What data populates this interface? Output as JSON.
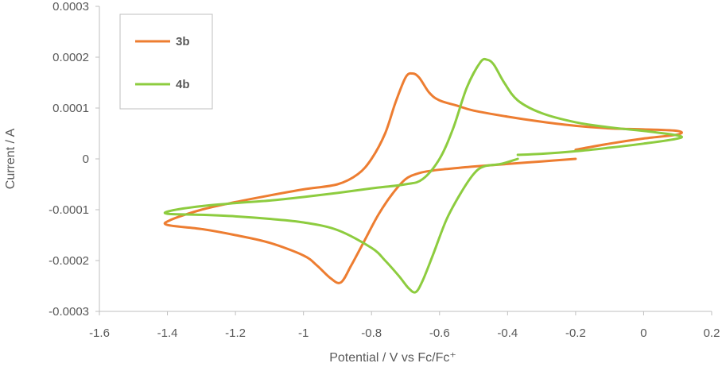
{
  "chart_data": {
    "type": "line",
    "title": "",
    "xlabel": "Potential / V vs  Fc/Fc⁺",
    "ylabel": "Current / A",
    "xlim": [
      -1.6,
      0.2
    ],
    "ylim": [
      -0.0003,
      0.0003
    ],
    "x_ticks": [
      -1.6,
      -1.4,
      -1.2,
      -1,
      -0.8,
      -0.6,
      -0.4,
      -0.2,
      0,
      0.2
    ],
    "x_tick_labels": [
      "-1.6",
      "-1.4",
      "-1.2",
      "-1",
      "-0.8",
      "-0.6",
      "-0.4",
      "-0.2",
      "0",
      "0.2"
    ],
    "y_ticks": [
      -0.0003,
      -0.0002,
      -0.0001,
      0,
      0.0001,
      0.0002,
      0.0003
    ],
    "y_tick_labels": [
      "-0.0003",
      "-0.0002",
      "-0.0001",
      "0",
      "0.0001",
      "0.0002",
      "0.0003"
    ],
    "grid": false,
    "legend_position": "top-left",
    "series": [
      {
        "name": "3b",
        "color": "#ED7D31",
        "points": [
          [
            -0.2,
            0.0
          ],
          [
            -0.3,
            -5e-06
          ],
          [
            -0.4,
            -1e-05
          ],
          [
            -0.5,
            -1.5e-05
          ],
          [
            -0.58,
            -2e-05
          ],
          [
            -0.62,
            -2.3e-05
          ],
          [
            -0.66,
            -2.8e-05
          ],
          [
            -0.7,
            -4e-05
          ],
          [
            -0.74,
            -7e-05
          ],
          [
            -0.78,
            -0.00011
          ],
          [
            -0.82,
            -0.00016
          ],
          [
            -0.86,
            -0.00021
          ],
          [
            -0.89,
            -0.000243
          ],
          [
            -0.92,
            -0.000235
          ],
          [
            -0.96,
            -0.00021
          ],
          [
            -1.0,
            -0.00019
          ],
          [
            -1.1,
            -0.000165
          ],
          [
            -1.2,
            -0.00015
          ],
          [
            -1.3,
            -0.000138
          ],
          [
            -1.4,
            -0.00013
          ],
          [
            -1.39,
            -0.00012
          ],
          [
            -1.3,
            -0.0001
          ],
          [
            -1.2,
            -8.5e-05
          ],
          [
            -1.1,
            -7.2e-05
          ],
          [
            -1.0,
            -6e-05
          ],
          [
            -0.9,
            -5e-05
          ],
          [
            -0.84,
            -3e-05
          ],
          [
            -0.8,
            0.0
          ],
          [
            -0.76,
            5e-05
          ],
          [
            -0.73,
            0.00011
          ],
          [
            -0.7,
            0.00016
          ],
          [
            -0.68,
            0.000168
          ],
          [
            -0.66,
            0.00016
          ],
          [
            -0.63,
            0.00013
          ],
          [
            -0.6,
            0.000115
          ],
          [
            -0.55,
            0.000105
          ],
          [
            -0.5,
            9.5e-05
          ],
          [
            -0.4,
            8.3e-05
          ],
          [
            -0.3,
            7.3e-05
          ],
          [
            -0.2,
            6.5e-05
          ],
          [
            -0.1,
            6e-05
          ],
          [
            0.0,
            5.8e-05
          ],
          [
            0.1,
            5.5e-05
          ],
          [
            0.1,
            4.8e-05
          ],
          [
            0.0,
            4e-05
          ],
          [
            -0.1,
            3e-05
          ],
          [
            -0.2,
            1.8e-05
          ]
        ]
      },
      {
        "name": "4b",
        "color": "#8DCC3F",
        "points": [
          [
            -0.37,
            0.0
          ],
          [
            -0.42,
            -1e-05
          ],
          [
            -0.47,
            -1.5e-05
          ],
          [
            -0.5,
            -3e-05
          ],
          [
            -0.54,
            -7e-05
          ],
          [
            -0.58,
            -0.00012
          ],
          [
            -0.62,
            -0.00019
          ],
          [
            -0.65,
            -0.00024
          ],
          [
            -0.67,
            -0.000262
          ],
          [
            -0.69,
            -0.000255
          ],
          [
            -0.72,
            -0.00023
          ],
          [
            -0.76,
            -0.0002
          ],
          [
            -0.8,
            -0.000175
          ],
          [
            -0.9,
            -0.00014
          ],
          [
            -1.0,
            -0.000125
          ],
          [
            -1.1,
            -0.000118
          ],
          [
            -1.2,
            -0.000113
          ],
          [
            -1.3,
            -0.00011
          ],
          [
            -1.4,
            -0.000108
          ],
          [
            -1.39,
            -0.000102
          ],
          [
            -1.3,
            -9.3e-05
          ],
          [
            -1.2,
            -8.7e-05
          ],
          [
            -1.1,
            -8.2e-05
          ],
          [
            -1.0,
            -7.5e-05
          ],
          [
            -0.9,
            -6.7e-05
          ],
          [
            -0.8,
            -5.8e-05
          ],
          [
            -0.7,
            -5e-05
          ],
          [
            -0.65,
            -4e-05
          ],
          [
            -0.6,
            0.0
          ],
          [
            -0.56,
            6e-05
          ],
          [
            -0.52,
            0.00014
          ],
          [
            -0.48,
            0.00019
          ],
          [
            -0.46,
            0.000195
          ],
          [
            -0.44,
            0.000185
          ],
          [
            -0.41,
            0.00015
          ],
          [
            -0.37,
            0.000115
          ],
          [
            -0.3,
            9e-05
          ],
          [
            -0.2,
            7.2e-05
          ],
          [
            -0.1,
            6.2e-05
          ],
          [
            0.0,
            5.5e-05
          ],
          [
            0.1,
            4.6e-05
          ],
          [
            0.1,
            4e-05
          ],
          [
            0.0,
            3e-05
          ],
          [
            -0.1,
            2.2e-05
          ],
          [
            -0.2,
            1.5e-05
          ],
          [
            -0.3,
            1e-05
          ],
          [
            -0.37,
            8e-06
          ]
        ]
      }
    ]
  }
}
